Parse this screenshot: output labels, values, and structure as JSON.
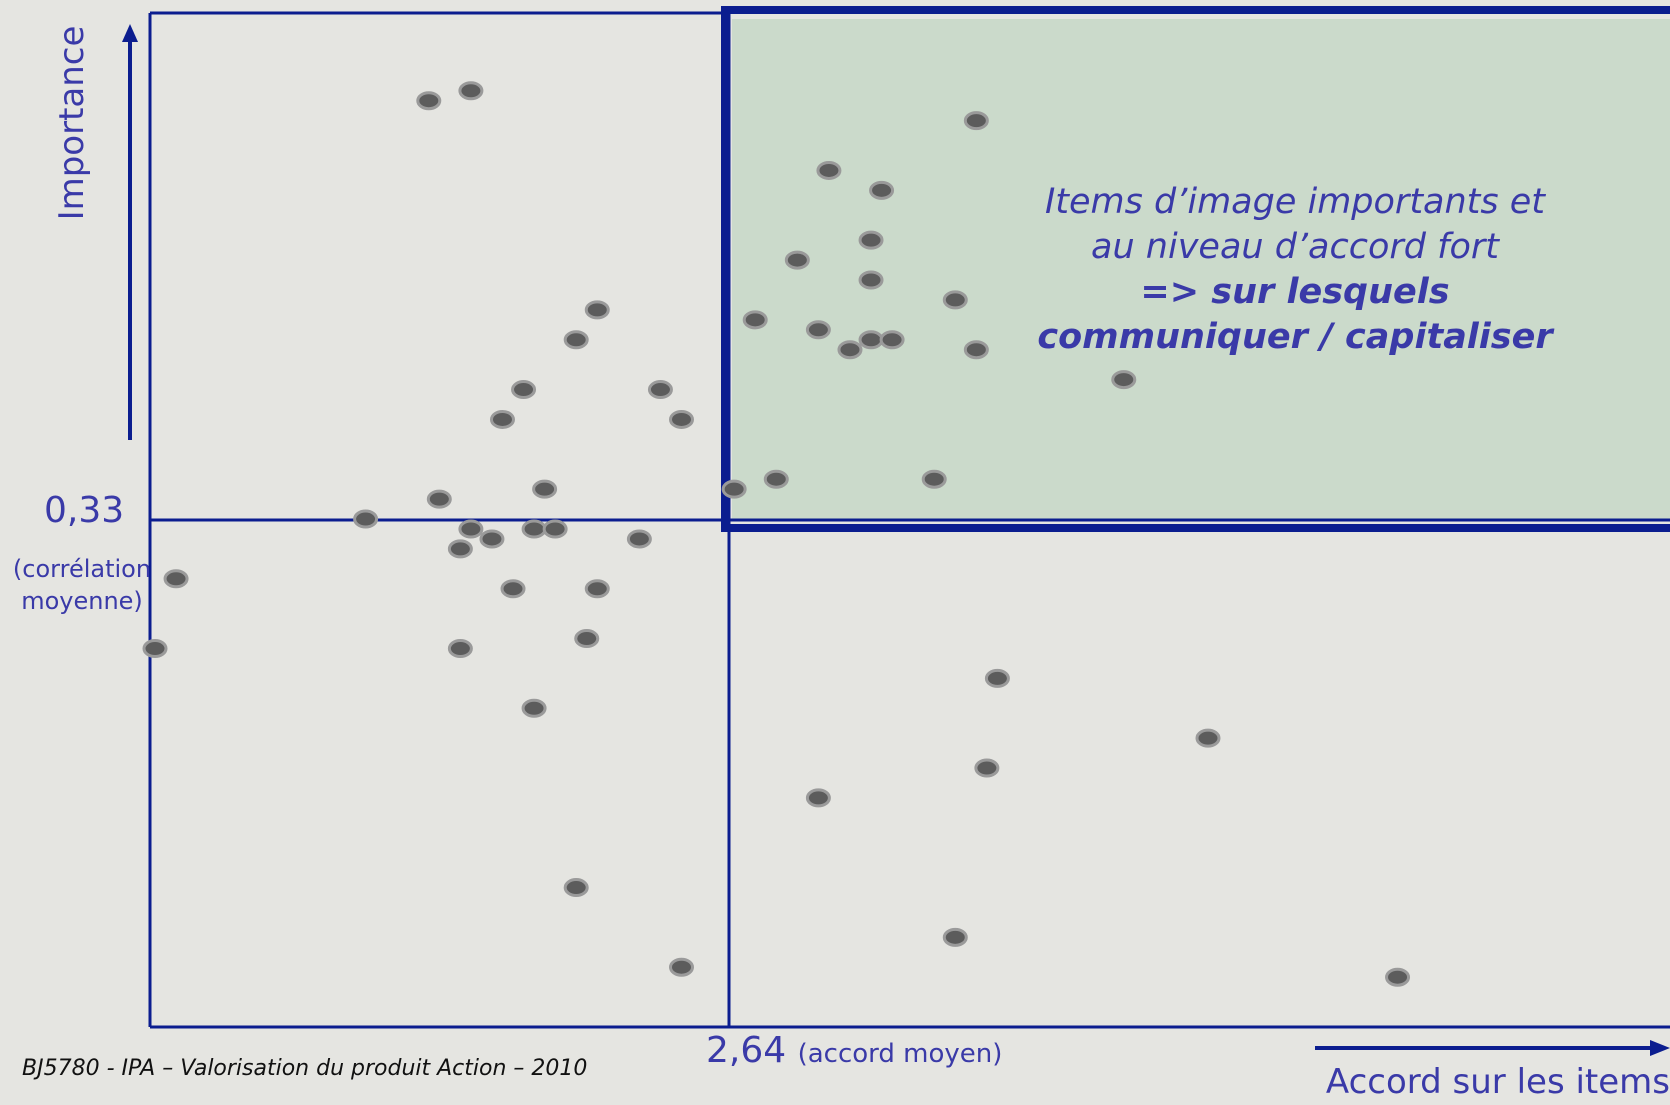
{
  "chart_data": {
    "type": "scatter",
    "title": "",
    "xlabel": "Accord sur les items",
    "ylabel": "Importance",
    "x_threshold": {
      "value": "2,64",
      "note": "(accord moyen)"
    },
    "y_threshold": {
      "value": "0,33",
      "note": "(corrélation moyenne)"
    },
    "highlighted_quadrant": "top-right",
    "annotation": {
      "line1": "Items d’image importants et au niveau d’accord fort",
      "line2": "=> sur lesquels communiquer / capitaliser"
    },
    "points": [
      {
        "x": 0.26,
        "y": 0.93
      },
      {
        "x": 0.3,
        "y": 0.94
      },
      {
        "x": 0.78,
        "y": 0.91
      },
      {
        "x": 0.64,
        "y": 0.86
      },
      {
        "x": 0.69,
        "y": 0.84
      },
      {
        "x": 0.68,
        "y": 0.79
      },
      {
        "x": 0.61,
        "y": 0.77
      },
      {
        "x": 0.68,
        "y": 0.75
      },
      {
        "x": 0.76,
        "y": 0.73
      },
      {
        "x": 0.42,
        "y": 0.72
      },
      {
        "x": 0.57,
        "y": 0.71
      },
      {
        "x": 0.63,
        "y": 0.7
      },
      {
        "x": 0.68,
        "y": 0.69
      },
      {
        "x": 0.7,
        "y": 0.69
      },
      {
        "x": 0.4,
        "y": 0.69
      },
      {
        "x": 0.66,
        "y": 0.68
      },
      {
        "x": 0.78,
        "y": 0.68
      },
      {
        "x": 0.92,
        "y": 0.65
      },
      {
        "x": 0.35,
        "y": 0.64
      },
      {
        "x": 0.48,
        "y": 0.64
      },
      {
        "x": 0.33,
        "y": 0.61
      },
      {
        "x": 0.5,
        "y": 0.61
      },
      {
        "x": 0.59,
        "y": 0.55
      },
      {
        "x": 0.74,
        "y": 0.55
      },
      {
        "x": 0.27,
        "y": 0.53
      },
      {
        "x": 0.37,
        "y": 0.54
      },
      {
        "x": 0.55,
        "y": 0.54
      },
      {
        "x": 0.2,
        "y": 0.51
      },
      {
        "x": 0.3,
        "y": 0.5
      },
      {
        "x": 0.36,
        "y": 0.5
      },
      {
        "x": 0.38,
        "y": 0.5
      },
      {
        "x": 0.46,
        "y": 0.49
      },
      {
        "x": 0.32,
        "y": 0.49
      },
      {
        "x": 0.29,
        "y": 0.48
      },
      {
        "x": 0.02,
        "y": 0.45
      },
      {
        "x": 0.34,
        "y": 0.44
      },
      {
        "x": 0.42,
        "y": 0.44
      },
      {
        "x": 0.0,
        "y": 0.38
      },
      {
        "x": 0.29,
        "y": 0.38
      },
      {
        "x": 0.41,
        "y": 0.39
      },
      {
        "x": 0.8,
        "y": 0.35
      },
      {
        "x": 0.36,
        "y": 0.32
      },
      {
        "x": 1.0,
        "y": 0.29
      },
      {
        "x": 0.79,
        "y": 0.26
      },
      {
        "x": 0.63,
        "y": 0.23
      },
      {
        "x": 0.4,
        "y": 0.14
      },
      {
        "x": 0.76,
        "y": 0.09
      },
      {
        "x": 1.18,
        "y": 0.05
      },
      {
        "x": 1.53,
        "y": 0.11
      },
      {
        "x": 0.5,
        "y": 0.06
      }
    ]
  },
  "footer": "BJ5780 - IPA – Valorisation du produit Action – 2010",
  "colors": {
    "axis": "#0b1d8f",
    "text": "#3a3aa8",
    "quadrant_fill": "#cbdacb",
    "point_fill": "#5c5c5c",
    "point_ring": "#9a9a9a"
  }
}
